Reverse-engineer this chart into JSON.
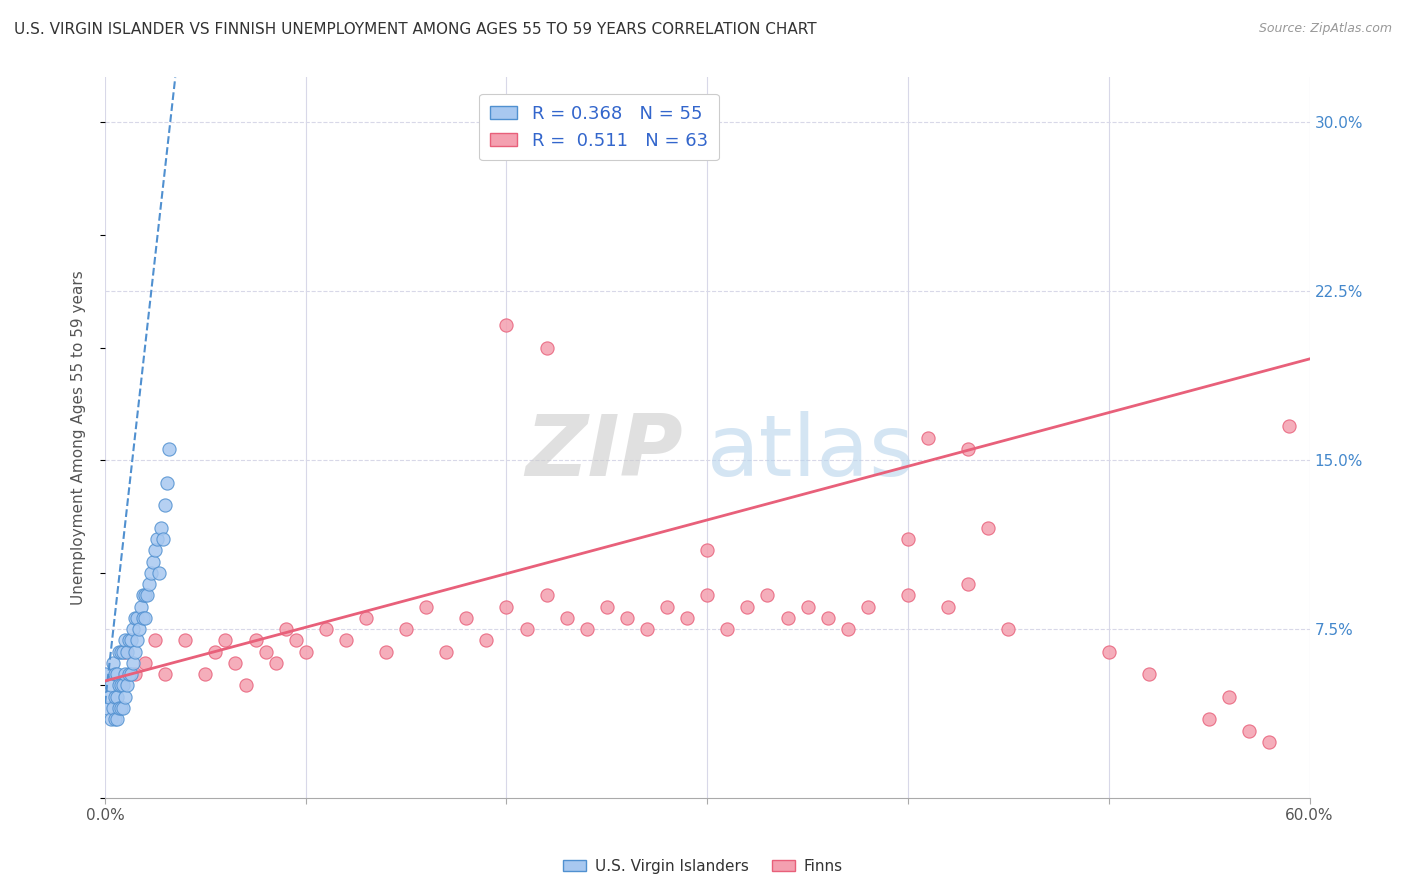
{
  "title": "U.S. VIRGIN ISLANDER VS FINNISH UNEMPLOYMENT AMONG AGES 55 TO 59 YEARS CORRELATION CHART",
  "source": "Source: ZipAtlas.com",
  "ylabel": "Unemployment Among Ages 55 to 59 years",
  "xlim": [
    0.0,
    0.6
  ],
  "ylim": [
    0.0,
    0.32
  ],
  "xticks": [
    0.0,
    0.1,
    0.2,
    0.3,
    0.4,
    0.5,
    0.6
  ],
  "xticklabels": [
    "0.0%",
    "",
    "",
    "",
    "",
    "",
    "60.0%"
  ],
  "yticks_right": [
    0.075,
    0.15,
    0.225,
    0.3
  ],
  "yticklabels_right": [
    "7.5%",
    "15.0%",
    "22.5%",
    "30.0%"
  ],
  "vi_R": 0.368,
  "vi_N": 55,
  "fi_R": 0.511,
  "fi_N": 63,
  "vi_color": "#a8c8f0",
  "fi_color": "#f4a0b0",
  "vi_trend_color": "#5090d0",
  "fi_trend_color": "#e8607a",
  "background_color": "#ffffff",
  "grid_color": "#d8d8e8",
  "legend_labels": [
    "U.S. Virgin Islanders",
    "Finns"
  ],
  "vi_scatter_x": [
    0.0,
    0.001,
    0.002,
    0.003,
    0.003,
    0.004,
    0.004,
    0.005,
    0.005,
    0.005,
    0.006,
    0.006,
    0.006,
    0.007,
    0.007,
    0.007,
    0.008,
    0.008,
    0.008,
    0.009,
    0.009,
    0.009,
    0.01,
    0.01,
    0.01,
    0.011,
    0.011,
    0.012,
    0.012,
    0.013,
    0.013,
    0.014,
    0.014,
    0.015,
    0.015,
    0.016,
    0.016,
    0.017,
    0.018,
    0.019,
    0.019,
    0.02,
    0.02,
    0.021,
    0.022,
    0.023,
    0.024,
    0.025,
    0.026,
    0.027,
    0.028,
    0.029,
    0.03,
    0.031,
    0.032
  ],
  "vi_scatter_y": [
    0.055,
    0.04,
    0.045,
    0.035,
    0.05,
    0.04,
    0.06,
    0.035,
    0.045,
    0.055,
    0.035,
    0.045,
    0.055,
    0.04,
    0.05,
    0.065,
    0.04,
    0.05,
    0.065,
    0.04,
    0.05,
    0.065,
    0.045,
    0.055,
    0.07,
    0.05,
    0.065,
    0.055,
    0.07,
    0.055,
    0.07,
    0.06,
    0.075,
    0.065,
    0.08,
    0.07,
    0.08,
    0.075,
    0.085,
    0.08,
    0.09,
    0.08,
    0.09,
    0.09,
    0.095,
    0.1,
    0.105,
    0.11,
    0.115,
    0.1,
    0.12,
    0.115,
    0.13,
    0.14,
    0.155
  ],
  "vi_trend_x": [
    0.0,
    0.035
  ],
  "vi_trend_y": [
    0.042,
    0.32
  ],
  "fi_scatter_x": [
    0.01,
    0.015,
    0.02,
    0.025,
    0.03,
    0.04,
    0.05,
    0.055,
    0.06,
    0.065,
    0.07,
    0.075,
    0.08,
    0.085,
    0.09,
    0.095,
    0.1,
    0.11,
    0.12,
    0.13,
    0.14,
    0.15,
    0.16,
    0.17,
    0.18,
    0.19,
    0.2,
    0.21,
    0.22,
    0.23,
    0.24,
    0.25,
    0.26,
    0.27,
    0.28,
    0.29,
    0.3,
    0.31,
    0.32,
    0.33,
    0.34,
    0.35,
    0.36,
    0.37,
    0.38,
    0.4,
    0.41,
    0.42,
    0.43,
    0.44,
    0.45,
    0.5,
    0.52,
    0.55,
    0.56,
    0.57,
    0.58,
    0.59,
    0.2,
    0.22,
    0.4,
    0.43,
    0.3
  ],
  "fi_scatter_y": [
    0.065,
    0.055,
    0.06,
    0.07,
    0.055,
    0.07,
    0.055,
    0.065,
    0.07,
    0.06,
    0.05,
    0.07,
    0.065,
    0.06,
    0.075,
    0.07,
    0.065,
    0.075,
    0.07,
    0.08,
    0.065,
    0.075,
    0.085,
    0.065,
    0.08,
    0.07,
    0.085,
    0.075,
    0.09,
    0.08,
    0.075,
    0.085,
    0.08,
    0.075,
    0.085,
    0.08,
    0.09,
    0.075,
    0.085,
    0.09,
    0.08,
    0.085,
    0.08,
    0.075,
    0.085,
    0.09,
    0.16,
    0.085,
    0.095,
    0.12,
    0.075,
    0.065,
    0.055,
    0.035,
    0.045,
    0.03,
    0.025,
    0.165,
    0.21,
    0.2,
    0.115,
    0.155,
    0.11
  ],
  "fi_trend_x": [
    0.0,
    0.6
  ],
  "fi_trend_y": [
    0.052,
    0.195
  ]
}
